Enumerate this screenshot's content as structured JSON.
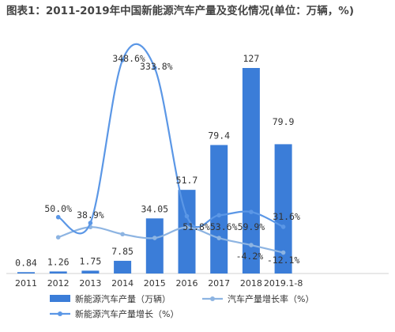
{
  "chart_data": {
    "type": "bar",
    "title": "图表1：2011-2019年中国新能源汽车产量及变化情况(单位：万辆，%)",
    "categories": [
      "2011",
      "2012",
      "2013",
      "2014",
      "2015",
      "2016",
      "2017",
      "2018",
      "2019.1-8"
    ],
    "series": [
      {
        "name": "新能源汽车产量（万辆）",
        "kind": "bar",
        "values": [
          0.84,
          1.26,
          1.75,
          7.85,
          34.05,
          51.7,
          79.4,
          127,
          79.9
        ],
        "labels": [
          "0.84",
          "1.26",
          "1.75",
          "7.85",
          "34.05",
          "51.7",
          "79.4",
          "127",
          "79.9"
        ]
      },
      {
        "name": "汽车产量增长率（%）",
        "kind": "line",
        "values": [
          null,
          4.0,
          14.8,
          7.3,
          3.3,
          14.5,
          3.2,
          -4.2,
          -12.1
        ],
        "labels": [
          null,
          null,
          null,
          null,
          null,
          null,
          null,
          "-4.2%",
          "-12.1%"
        ]
      },
      {
        "name": "新能源汽车产量增长（%）",
        "kind": "line",
        "values": [
          null,
          50.0,
          38.9,
          348.6,
          333.8,
          51.8,
          53.6,
          59.9,
          31.6
        ],
        "labels": [
          null,
          "50.0%",
          "38.9%",
          "348.6%",
          "333.8%",
          "51.8%",
          "53.6%",
          "59.9%",
          "31.6%"
        ]
      }
    ],
    "colors": {
      "bar": "#3b7dd8",
      "growth_rate": "#8db4e2",
      "nev_growth": "#5b97e6"
    },
    "legend_position": "bottom",
    "grid": false
  }
}
